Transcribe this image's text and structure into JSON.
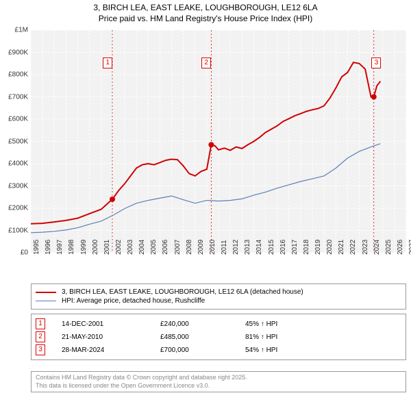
{
  "title": {
    "line1": "3, BIRCH LEA, EAST LEAKE, LOUGHBOROUGH, LE12 6LA",
    "line2": "Price paid vs. HM Land Registry's House Price Index (HPI)"
  },
  "chart": {
    "type": "line",
    "background_color": "#ffffff",
    "plot_bg_color": "#f2f2f2",
    "grid_color": "#ffffff",
    "grid_dash": "3,2",
    "x_domain": [
      1995,
      2027
    ],
    "y_domain": [
      0,
      1000000
    ],
    "y_ticks": [
      {
        "v": 0,
        "label": "£0"
      },
      {
        "v": 100000,
        "label": "£100K"
      },
      {
        "v": 200000,
        "label": "£200K"
      },
      {
        "v": 300000,
        "label": "£300K"
      },
      {
        "v": 400000,
        "label": "£400K"
      },
      {
        "v": 500000,
        "label": "£500K"
      },
      {
        "v": 600000,
        "label": "£600K"
      },
      {
        "v": 700000,
        "label": "£700K"
      },
      {
        "v": 800000,
        "label": "£800K"
      },
      {
        "v": 900000,
        "label": "£900K"
      },
      {
        "v": 1000000,
        "label": "£1M"
      }
    ],
    "x_ticks": [
      1995,
      1996,
      1997,
      1998,
      1999,
      2000,
      2001,
      2002,
      2003,
      2004,
      2005,
      2006,
      2007,
      2008,
      2009,
      2010,
      2011,
      2012,
      2013,
      2014,
      2015,
      2016,
      2017,
      2018,
      2019,
      2020,
      2021,
      2022,
      2023,
      2024,
      2025,
      2026,
      2027
    ],
    "series": [
      {
        "name": "price_paid",
        "color": "#d00000",
        "width": 2,
        "points": [
          [
            1995,
            130000
          ],
          [
            1996,
            132000
          ],
          [
            1997,
            138000
          ],
          [
            1998,
            145000
          ],
          [
            1999,
            155000
          ],
          [
            2000,
            175000
          ],
          [
            2001,
            195000
          ],
          [
            2001.95,
            240000
          ],
          [
            2002.5,
            280000
          ],
          [
            2003,
            310000
          ],
          [
            2003.5,
            345000
          ],
          [
            2004,
            380000
          ],
          [
            2004.5,
            395000
          ],
          [
            2005,
            400000
          ],
          [
            2005.5,
            395000
          ],
          [
            2006,
            405000
          ],
          [
            2006.5,
            415000
          ],
          [
            2007,
            420000
          ],
          [
            2007.5,
            418000
          ],
          [
            2008,
            390000
          ],
          [
            2008.5,
            355000
          ],
          [
            2009,
            345000
          ],
          [
            2009.5,
            365000
          ],
          [
            2010,
            375000
          ],
          [
            2010.38,
            485000
          ],
          [
            2010.7,
            480000
          ],
          [
            2011,
            462000
          ],
          [
            2011.5,
            470000
          ],
          [
            2012,
            460000
          ],
          [
            2012.5,
            475000
          ],
          [
            2013,
            468000
          ],
          [
            2013.5,
            485000
          ],
          [
            2014,
            500000
          ],
          [
            2014.5,
            518000
          ],
          [
            2015,
            540000
          ],
          [
            2015.5,
            555000
          ],
          [
            2016,
            570000
          ],
          [
            2016.5,
            590000
          ],
          [
            2017,
            602000
          ],
          [
            2017.5,
            615000
          ],
          [
            2018,
            625000
          ],
          [
            2018.5,
            635000
          ],
          [
            2019,
            642000
          ],
          [
            2019.5,
            648000
          ],
          [
            2020,
            660000
          ],
          [
            2020.5,
            695000
          ],
          [
            2021,
            740000
          ],
          [
            2021.5,
            790000
          ],
          [
            2022,
            810000
          ],
          [
            2022.5,
            855000
          ],
          [
            2023,
            850000
          ],
          [
            2023.5,
            825000
          ],
          [
            2024,
            700000
          ],
          [
            2024.24,
            700000
          ],
          [
            2024.5,
            750000
          ],
          [
            2024.8,
            770000
          ]
        ]
      },
      {
        "name": "hpi",
        "color": "#5b7fb5",
        "width": 1.2,
        "points": [
          [
            1995,
            90000
          ],
          [
            1996,
            92000
          ],
          [
            1997,
            96000
          ],
          [
            1998,
            102000
          ],
          [
            1999,
            112000
          ],
          [
            2000,
            128000
          ],
          [
            2001,
            142000
          ],
          [
            2002,
            168000
          ],
          [
            2003,
            198000
          ],
          [
            2004,
            222000
          ],
          [
            2005,
            235000
          ],
          [
            2006,
            245000
          ],
          [
            2007,
            255000
          ],
          [
            2008,
            238000
          ],
          [
            2009,
            222000
          ],
          [
            2010,
            235000
          ],
          [
            2011,
            232000
          ],
          [
            2012,
            235000
          ],
          [
            2013,
            242000
          ],
          [
            2014,
            258000
          ],
          [
            2015,
            272000
          ],
          [
            2016,
            290000
          ],
          [
            2017,
            305000
          ],
          [
            2018,
            320000
          ],
          [
            2019,
            332000
          ],
          [
            2020,
            345000
          ],
          [
            2021,
            380000
          ],
          [
            2022,
            425000
          ],
          [
            2023,
            455000
          ],
          [
            2024,
            475000
          ],
          [
            2024.8,
            490000
          ]
        ]
      }
    ],
    "sale_markers": [
      {
        "n": "1",
        "x": 2001.95,
        "y": 240000,
        "box_x": 2001.5,
        "box_y": 40
      },
      {
        "n": "2",
        "x": 2010.38,
        "y": 485000,
        "box_x": 2009.9,
        "box_y": 40
      },
      {
        "n": "3",
        "x": 2024.24,
        "y": 700000,
        "box_x": 2024.4,
        "box_y": 40
      }
    ],
    "marker_line_color": "#d00000",
    "marker_fill": "#d00000"
  },
  "legend": {
    "items": [
      {
        "color": "#d00000",
        "width": 2,
        "label": "3, BIRCH LEA, EAST LEAKE, LOUGHBOROUGH, LE12 6LA (detached house)"
      },
      {
        "color": "#5b7fb5",
        "width": 1.2,
        "label": "HPI: Average price, detached house, Rushcliffe"
      }
    ]
  },
  "events": [
    {
      "n": "1",
      "date": "14-DEC-2001",
      "price": "£240,000",
      "pct": "45% ↑ HPI"
    },
    {
      "n": "2",
      "date": "21-MAY-2010",
      "price": "£485,000",
      "pct": "81% ↑ HPI"
    },
    {
      "n": "3",
      "date": "28-MAR-2024",
      "price": "£700,000",
      "pct": "54% ↑ HPI"
    }
  ],
  "attribution": {
    "line1": "Contains HM Land Registry data © Crown copyright and database right 2025.",
    "line2": "This data is licensed under the Open Government Licence v3.0."
  }
}
